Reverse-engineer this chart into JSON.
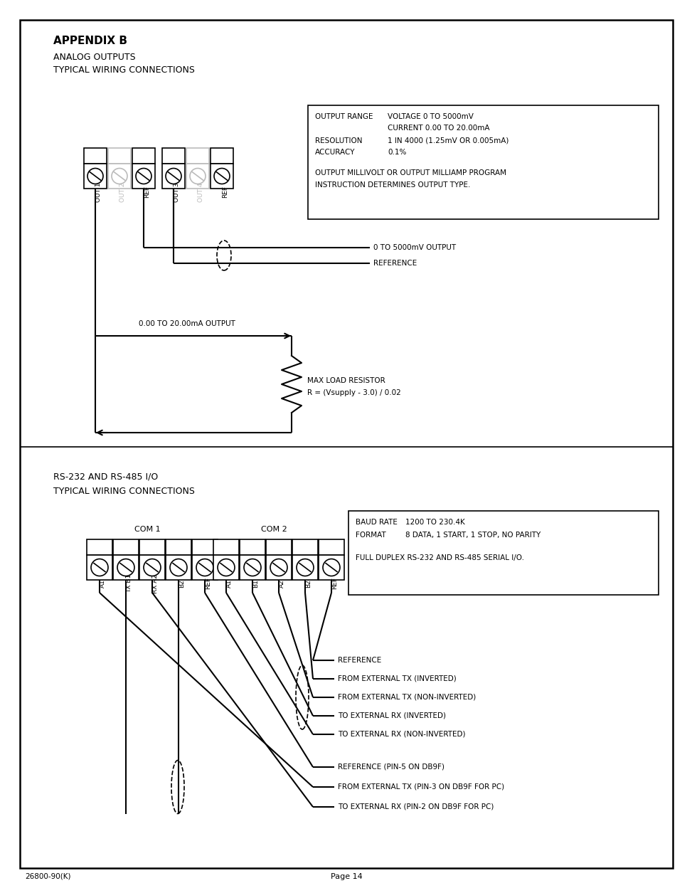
{
  "page_bg": "#ffffff",
  "title1_bold": "APPENDIX B",
  "title1_sub1": "ANALOG OUTPUTS",
  "title1_sub2": "TYPICAL WIRING CONNECTIONS",
  "connector1_labels": [
    "OUT 1",
    "OUT 2",
    "REF",
    "OUT 3",
    "OUT 4",
    "REF"
  ],
  "connector1_grayed": [
    false,
    true,
    false,
    false,
    true,
    false
  ],
  "resistor_label1": "MAX LOAD RESISTOR",
  "resistor_label2": "R = (Vsupply - 3.0) / 0.02",
  "label_5000mv": "0 TO 5000mV OUTPUT",
  "label_ref": "REFERENCE",
  "label_ma": "0.00 TO 20.00mA OUTPUT",
  "title2_line1": "RS-232 AND RS-485 I/O",
  "title2_line2": "TYPICAL WIRING CONNECTIONS",
  "com1_label": "COM 1",
  "com2_label": "COM 2",
  "com1_pin_labels": [
    "A1",
    "TX B1",
    "RX A2",
    "B2",
    "REF"
  ],
  "com2_pin_labels": [
    "A1",
    "B1",
    "A2",
    "B2",
    "REF"
  ],
  "box1_text": [
    [
      "OUTPUT RANGE",
      "VOLTAGE 0 TO 5000mV"
    ],
    [
      "",
      "CURRENT 0.00 TO 20.00mA"
    ],
    [
      "RESOLUTION",
      "1 IN 4000 (1.25mV OR 0.005mA)"
    ],
    [
      "ACCURACY",
      "0.1%"
    ],
    [
      "OUTPUT MILLIVOLT OR OUTPUT MILLIAMP PROGRAM",
      ""
    ],
    [
      "INSTRUCTION DETERMINES OUTPUT TYPE.",
      ""
    ]
  ],
  "box2_text": [
    [
      "BAUD RATE",
      "1200 TO 230.4K"
    ],
    [
      "FORMAT",
      "8 DATA, 1 START, 1 STOP, NO PARITY"
    ],
    [
      "FULL DUPLEX RS-232 AND RS-485 SERIAL I/O.",
      ""
    ]
  ],
  "com2_wire_labels": [
    "REFERENCE",
    "FROM EXTERNAL TX (INVERTED)",
    "FROM EXTERNAL TX (NON-INVERTED)",
    "TO EXTERNAL RX (INVERTED)",
    "TO EXTERNAL RX (NON-INVERTED)"
  ],
  "com1_wire_labels": [
    "REFERENCE (PIN-5 ON DB9F)",
    "FROM EXTERNAL TX (PIN-3 ON DB9F FOR PC)",
    "TO EXTERNAL RX (PIN-2 ON DB9F FOR PC)"
  ],
  "footer_left": "26800-90(K)",
  "footer_center": "Page 14"
}
